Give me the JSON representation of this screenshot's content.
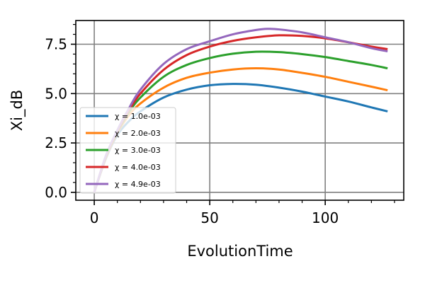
{
  "chart_data": {
    "type": "line",
    "title": "",
    "xlabel": "EvolutionTime",
    "ylabel": "Xi_dB",
    "xlim": [
      -8,
      134
    ],
    "ylim": [
      -0.4,
      8.7
    ],
    "xticks": [
      0,
      50,
      100
    ],
    "xtick_labels": [
      "0",
      "50",
      "100"
    ],
    "yticks": [
      0.0,
      2.5,
      5.0,
      7.5
    ],
    "ytick_labels": [
      "0.0",
      "2.5",
      "5.0",
      "7.5"
    ],
    "grid": true,
    "legend_position": "lower-left",
    "series": [
      {
        "name": "χ = 1.0e-03",
        "color": "#1f77b4",
        "x": [
          0,
          5,
          10,
          15,
          20,
          30,
          40,
          50,
          60,
          70,
          80,
          90,
          100,
          110,
          120,
          127
        ],
        "y": [
          0,
          1.7,
          2.9,
          3.6,
          4.1,
          4.8,
          5.2,
          5.42,
          5.49,
          5.45,
          5.3,
          5.1,
          4.85,
          4.6,
          4.3,
          4.1
        ]
      },
      {
        "name": "χ = 2.0e-03",
        "color": "#ff7f0e",
        "x": [
          0,
          5,
          10,
          15,
          20,
          30,
          40,
          50,
          60,
          70,
          80,
          90,
          100,
          110,
          120,
          127
        ],
        "y": [
          0,
          1.75,
          3.0,
          3.9,
          4.5,
          5.3,
          5.8,
          6.06,
          6.22,
          6.28,
          6.22,
          6.05,
          5.85,
          5.6,
          5.35,
          5.17
        ]
      },
      {
        "name": "χ = 3.0e-03",
        "color": "#2ca02c",
        "x": [
          0,
          5,
          10,
          15,
          20,
          30,
          40,
          50,
          60,
          70,
          80,
          90,
          100,
          110,
          120,
          127
        ],
        "y": [
          0,
          1.8,
          3.05,
          4.05,
          4.8,
          5.85,
          6.45,
          6.8,
          7.02,
          7.12,
          7.1,
          7.0,
          6.85,
          6.65,
          6.45,
          6.28
        ]
      },
      {
        "name": "χ = 4.0e-03",
        "color": "#d62728",
        "x": [
          0,
          5,
          10,
          15,
          20,
          30,
          40,
          50,
          60,
          70,
          80,
          90,
          100,
          110,
          120,
          127
        ],
        "y": [
          0,
          1.82,
          3.1,
          4.15,
          5.0,
          6.2,
          6.95,
          7.38,
          7.67,
          7.85,
          7.95,
          7.92,
          7.8,
          7.6,
          7.38,
          7.25
        ]
      },
      {
        "name": "χ = 4.9e-03",
        "color": "#9467bd",
        "x": [
          0,
          5,
          10,
          15,
          20,
          30,
          40,
          50,
          60,
          70,
          75,
          80,
          90,
          100,
          110,
          120,
          127
        ],
        "y": [
          0,
          1.85,
          3.15,
          4.25,
          5.2,
          6.5,
          7.25,
          7.65,
          8.0,
          8.22,
          8.28,
          8.25,
          8.1,
          7.85,
          7.6,
          7.3,
          7.14
        ]
      }
    ]
  }
}
